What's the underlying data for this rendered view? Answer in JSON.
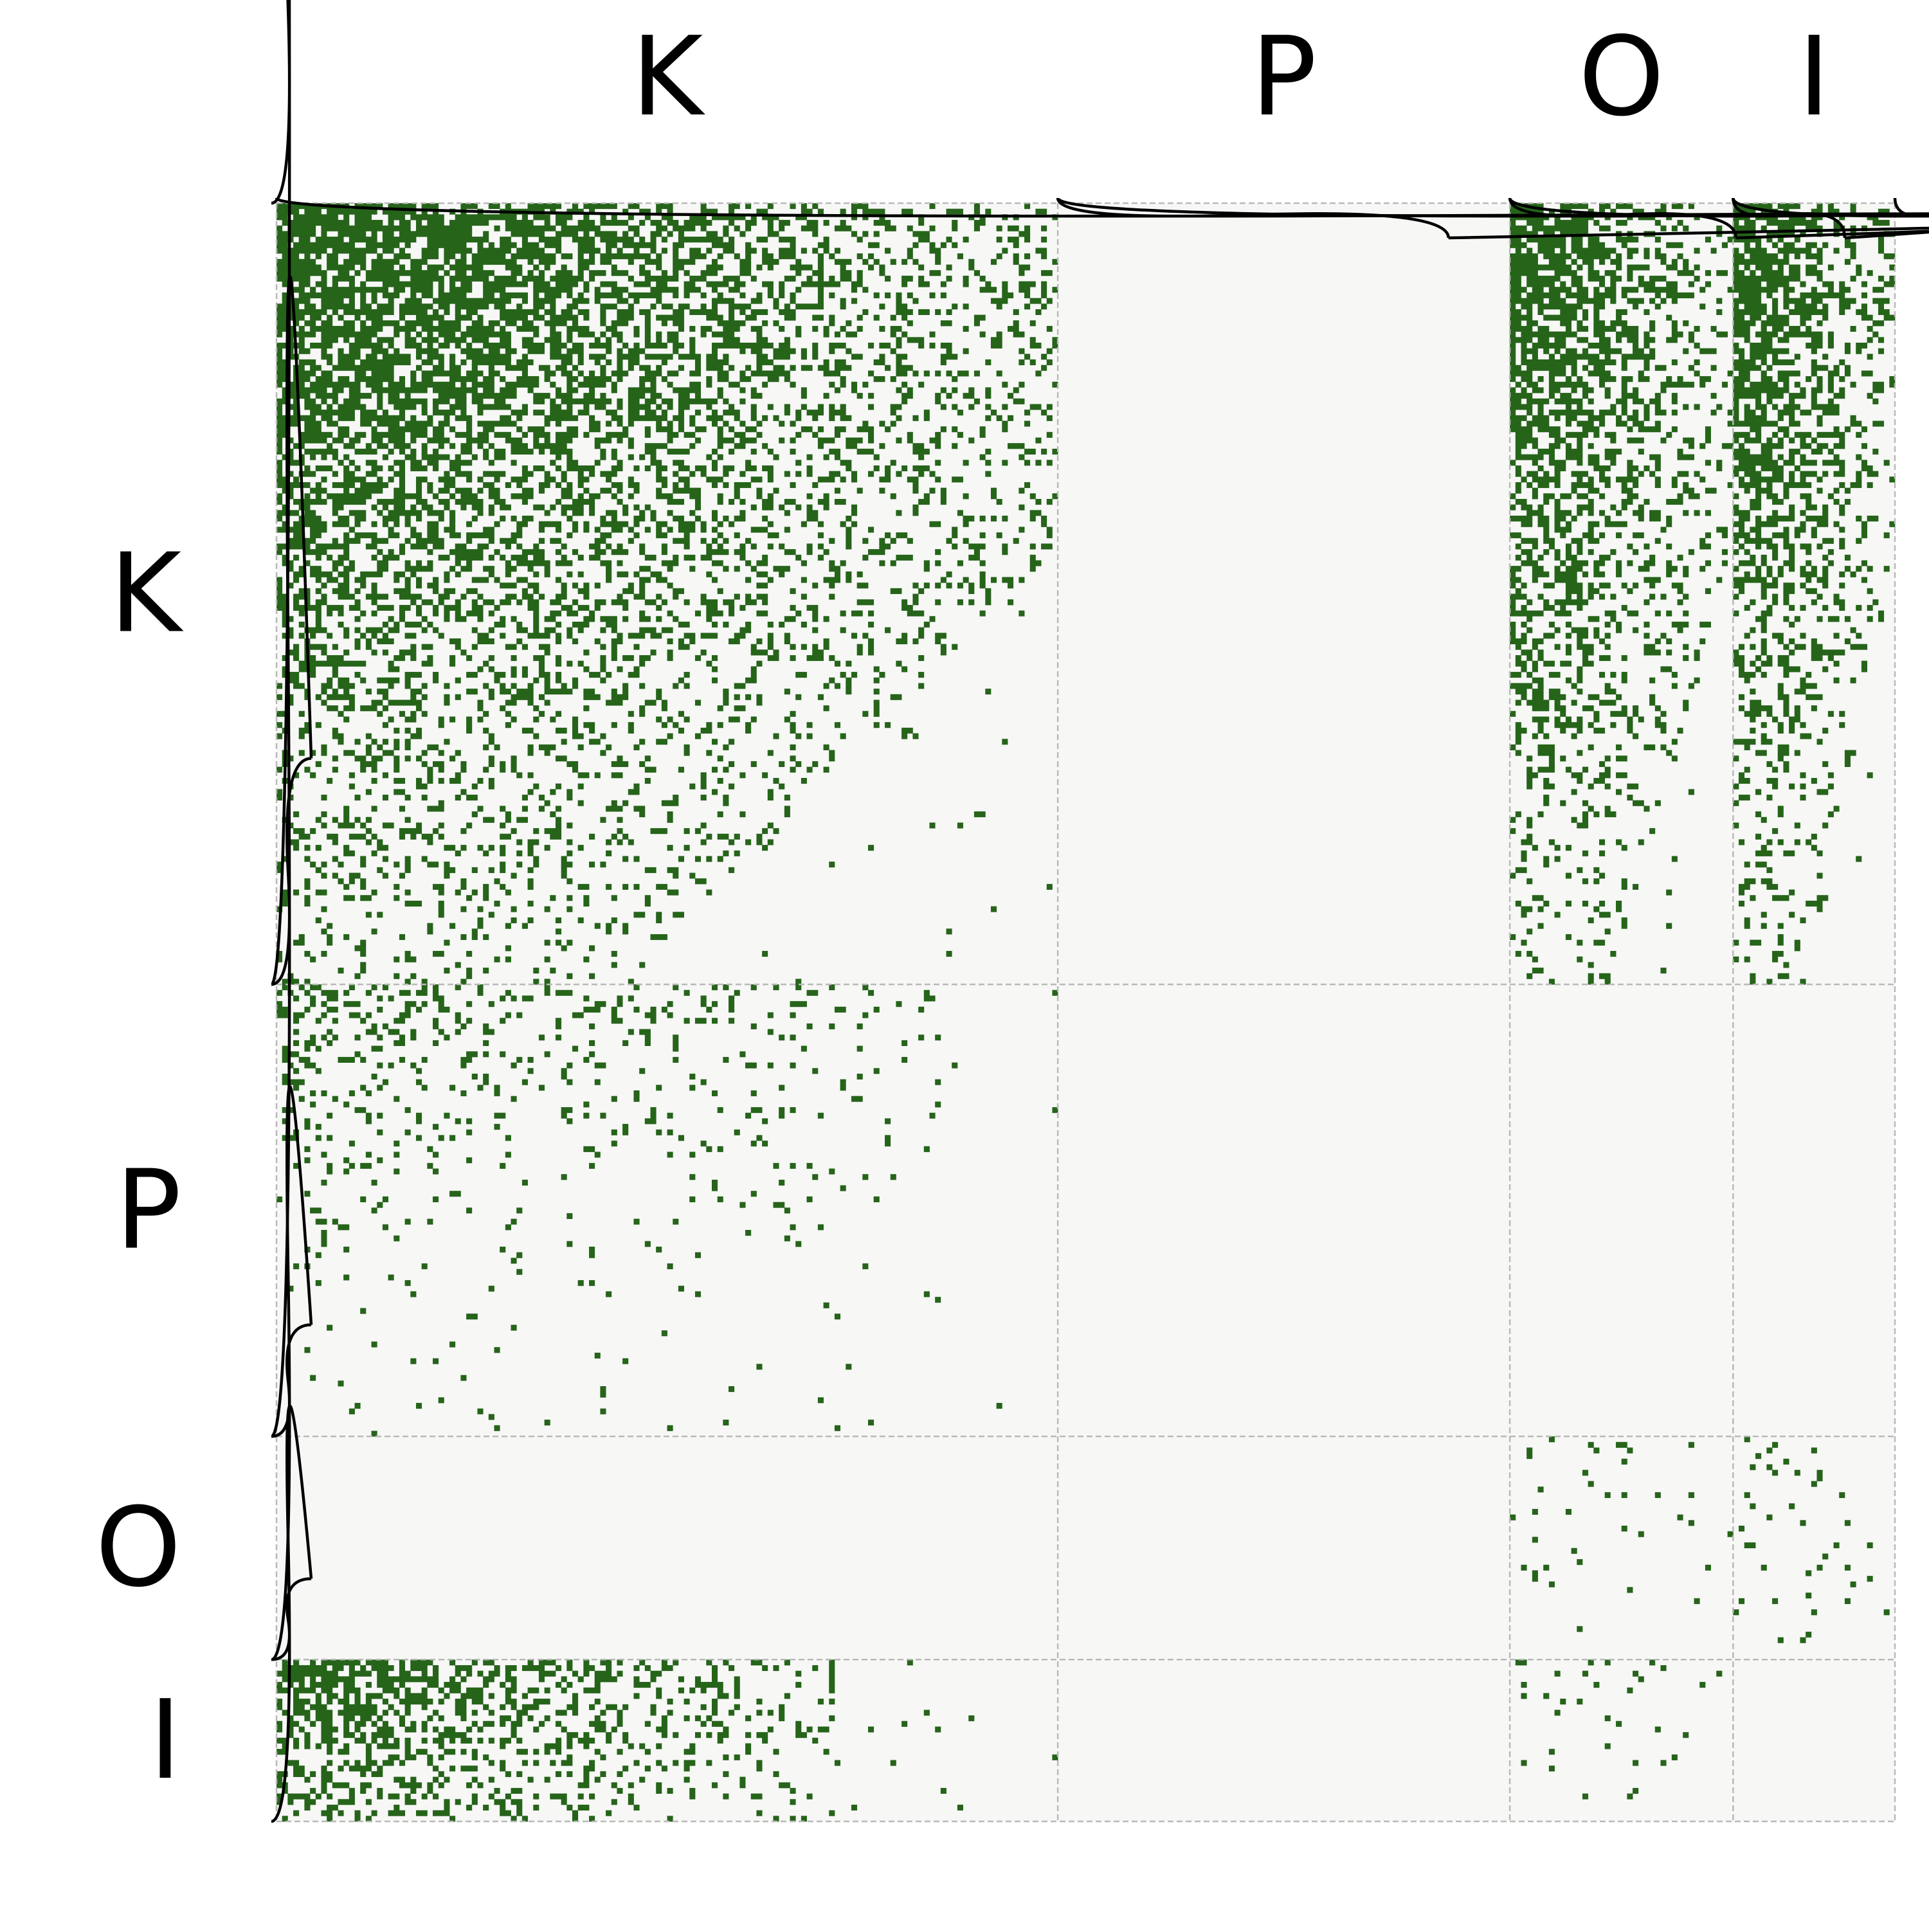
{
  "chart_data": {
    "type": "heatmap",
    "title": "",
    "xlabel": "",
    "ylabel": "",
    "grid": true,
    "blocks": [
      {
        "label": "K",
        "size": 140
      },
      {
        "label": "P",
        "size": 81
      },
      {
        "label": "O",
        "size": 40
      },
      {
        "label": "I",
        "size": 29
      }
    ],
    "colors": {
      "filled": "#26641a",
      "background": "#f7f7f6",
      "divider": "#b9b9b9",
      "brace": "#000000"
    },
    "block_density": [
      [
        "dense-triangular-decay",
        "empty",
        "dense-triangular-decay",
        "dense-triangular-decay"
      ],
      [
        "sparse-decay",
        "empty",
        "empty",
        "empty"
      ],
      [
        "empty",
        "empty",
        "very-sparse",
        "very-sparse"
      ],
      [
        "dense-decay",
        "empty",
        "very-sparse",
        "empty"
      ]
    ]
  }
}
